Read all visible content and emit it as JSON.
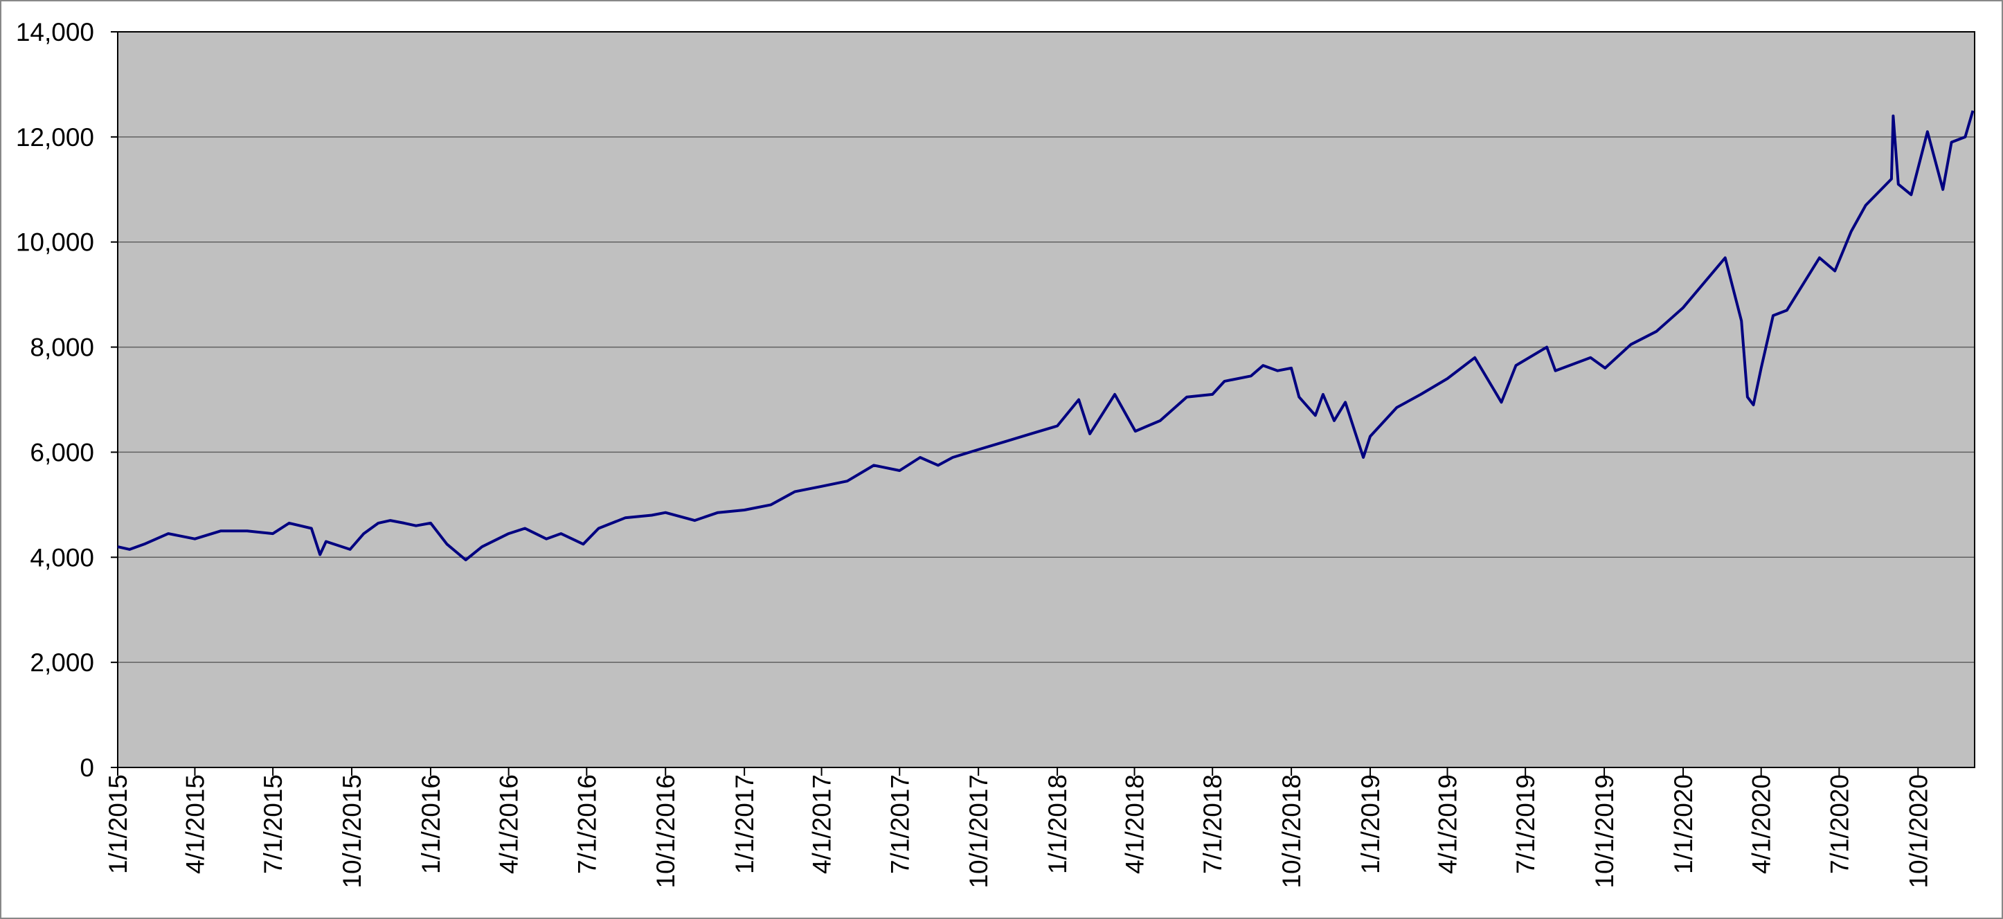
{
  "chart_data": {
    "type": "line",
    "x": [
      "1/1/2015",
      "1/15/2015",
      "2/1/2015",
      "3/1/2015",
      "4/1/2015",
      "5/1/2015",
      "6/1/2015",
      "7/1/2015",
      "7/20/2015",
      "8/15/2015",
      "8/25/2015",
      "9/1/2015",
      "9/29/2015",
      "10/15/2015",
      "11/1/2015",
      "11/15/2015",
      "12/1/2015",
      "12/15/2015",
      "1/1/2016",
      "1/20/2016",
      "2/11/2016",
      "3/1/2016",
      "4/1/2016",
      "4/20/2016",
      "5/15/2016",
      "6/1/2016",
      "6/27/2016",
      "7/15/2016",
      "8/15/2016",
      "9/15/2016",
      "10/1/2016",
      "11/4/2016",
      "12/1/2016",
      "1/1/2017",
      "2/1/2017",
      "3/1/2017",
      "4/1/2017",
      "5/1/2017",
      "6/1/2017",
      "7/1/2017",
      "7/25/2017",
      "8/15/2017",
      "9/1/2017",
      "10/1/2017",
      "11/1/2017",
      "12/1/2017",
      "1/1/2018",
      "1/26/2018",
      "2/8/2018",
      "3/9/2018",
      "4/2/2018",
      "5/1/2018",
      "6/1/2018",
      "7/1/2018",
      "7/15/2018",
      "8/15/2018",
      "8/29/2018",
      "9/15/2018",
      "10/1/2018",
      "10/10/2018",
      "10/29/2018",
      "11/7/2018",
      "11/20/2018",
      "12/3/2018",
      "12/24/2018",
      "1/1/2019",
      "2/1/2019",
      "3/1/2019",
      "4/1/2019",
      "5/3/2019",
      "6/3/2019",
      "6/20/2019",
      "7/26/2019",
      "8/5/2019",
      "9/15/2019",
      "10/2/2019",
      "11/1/2019",
      "12/1/2019",
      "1/1/2020",
      "2/19/2020",
      "3/9/2020",
      "3/16/2020",
      "3/23/2020",
      "4/1/2020",
      "4/15/2020",
      "5/1/2020",
      "6/8/2020",
      "6/26/2020",
      "7/15/2020",
      "8/1/2020",
      "8/31/2020",
      "9/2/2020",
      "9/8/2020",
      "9/23/2020",
      "10/12/2020",
      "10/30/2020",
      "11/9/2020",
      "11/25/2020",
      "12/4/2020"
    ],
    "values": [
      4200,
      4150,
      4250,
      4450,
      4350,
      4500,
      4500,
      4450,
      4650,
      4550,
      4050,
      4300,
      4150,
      4450,
      4650,
      4700,
      4650,
      4600,
      4650,
      4250,
      3950,
      4200,
      4450,
      4550,
      4350,
      4450,
      4250,
      4550,
      4750,
      4800,
      4850,
      4700,
      4850,
      4900,
      5000,
      5250,
      5350,
      5450,
      5750,
      5650,
      5900,
      5750,
      5900,
      6050,
      6200,
      6350,
      6500,
      7000,
      6350,
      7100,
      6400,
      6600,
      7050,
      7100,
      7350,
      7450,
      7650,
      7550,
      7600,
      7050,
      6700,
      7100,
      6600,
      6950,
      5900,
      6300,
      6850,
      7100,
      7400,
      7800,
      6950,
      7650,
      8000,
      7550,
      7800,
      7600,
      8050,
      8300,
      8750,
      9700,
      8500,
      7050,
      6900,
      7600,
      8600,
      8700,
      9700,
      9450,
      10200,
      10700,
      11200,
      12400,
      11100,
      10900,
      12100,
      11000,
      11900,
      12000,
      12500
    ],
    "color": "#000080",
    "xlim": [
      "1/1/2015",
      "12/6/2020"
    ],
    "xticks": [
      "1/1/2015",
      "4/1/2015",
      "7/1/2015",
      "10/1/2015",
      "1/1/2016",
      "4/1/2016",
      "7/1/2016",
      "10/1/2016",
      "1/1/2017",
      "4/1/2017",
      "7/1/2017",
      "10/1/2017",
      "1/1/2018",
      "4/1/2018",
      "7/1/2018",
      "10/1/2018",
      "1/1/2019",
      "4/1/2019",
      "7/1/2019",
      "10/1/2019",
      "1/1/2020",
      "4/1/2020",
      "7/1/2020",
      "10/1/2020"
    ],
    "ylim": [
      0,
      14000
    ],
    "yticks": [
      0,
      {
        "value": 2000,
        "label": "2,000"
      },
      {
        "value": 4000,
        "label": "4,000"
      },
      {
        "value": 6000,
        "label": "6,000"
      },
      {
        "value": 8000,
        "label": "8,000"
      },
      {
        "value": 10000,
        "label": "10,000"
      },
      {
        "value": 12000,
        "label": "12,000"
      },
      {
        "value": 14000,
        "label": "14,000"
      }
    ],
    "grid": true
  }
}
